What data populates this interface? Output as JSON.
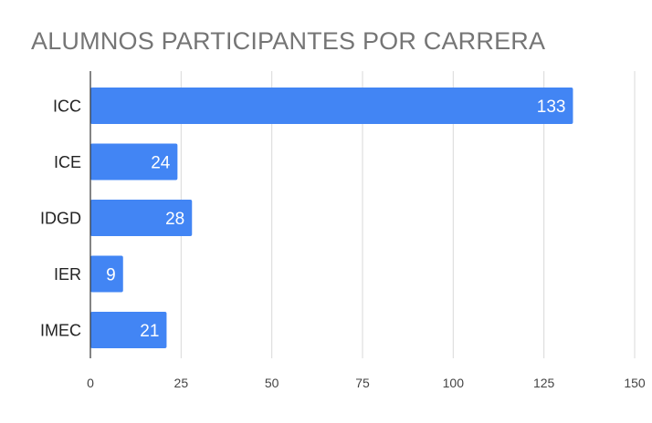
{
  "chart_data": {
    "type": "bar",
    "orientation": "horizontal",
    "title": "ALUMNOS PARTICIPANTES POR CARRERA",
    "categories": [
      "ICC",
      "ICE",
      "IDGD",
      "IER",
      "IMEC"
    ],
    "values": [
      133,
      24,
      28,
      9,
      21
    ],
    "xlim": [
      0,
      150
    ],
    "x_ticks": [
      "0",
      "25",
      "50",
      "75",
      "100",
      "125",
      "150"
    ],
    "grid": "vertical",
    "bar_color": "#4285f4",
    "data_labels": true
  }
}
